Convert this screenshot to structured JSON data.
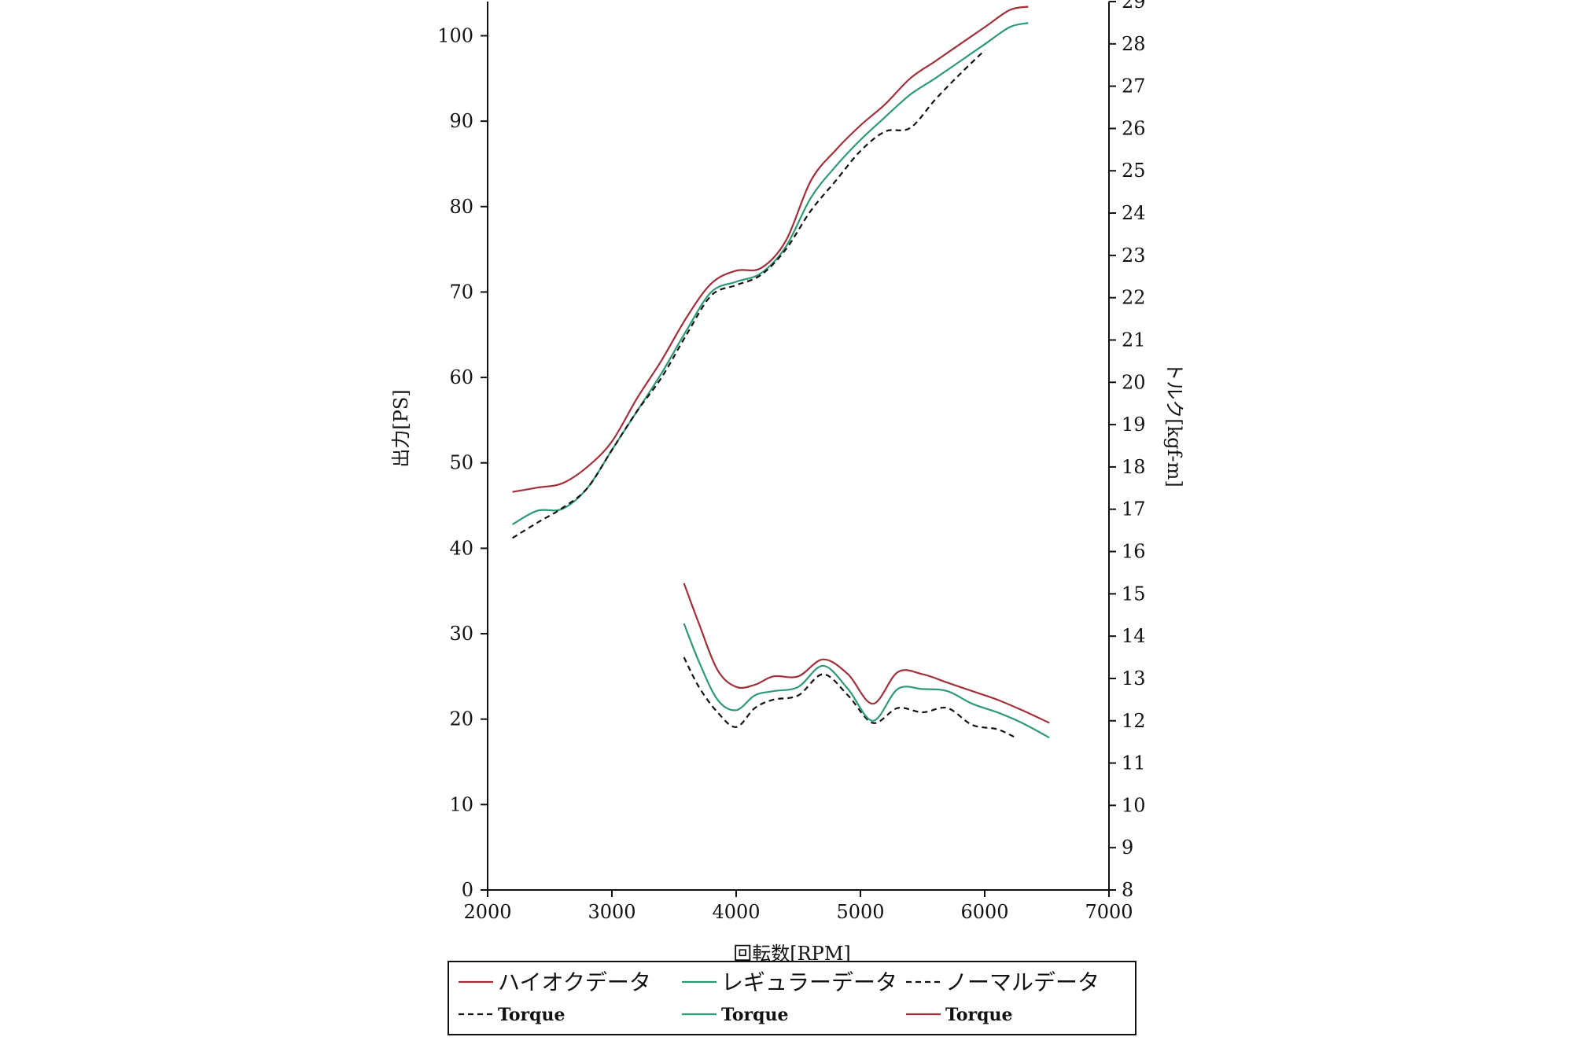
{
  "chart_data": {
    "type": "line",
    "title": "",
    "xlabel": "回転数[RPM]",
    "ylabel_left": "出力[PS]",
    "ylabel_right": "トルク[kgf-m]",
    "xlim": [
      2000,
      7000
    ],
    "ylim_left": [
      0,
      104
    ],
    "ylim_right": [
      8,
      29
    ],
    "x_ticks": [
      "2000",
      "3000",
      "4000",
      "5000",
      "6000",
      "7000"
    ],
    "y_left_ticks": [
      "0",
      "10",
      "20",
      "30",
      "40",
      "50",
      "60",
      "70",
      "80",
      "90",
      "100"
    ],
    "y_right_ticks": [
      "8",
      "9",
      "10",
      "11",
      "12",
      "13",
      "14",
      "15",
      "16",
      "17",
      "18",
      "19",
      "20",
      "21",
      "22",
      "23",
      "24",
      "25",
      "26",
      "27",
      "28",
      "29"
    ],
    "grid": false,
    "legend_position": "bottom",
    "colors": {
      "hioc": "#a0303a",
      "regular": "#2e9a72",
      "normal": "#111111"
    },
    "series": [
      {
        "name": "ハイオクデータ",
        "axis": "left",
        "style": "solid",
        "color": "#a0303a",
        "x": [
          2200,
          2400,
          2600,
          2800,
          3000,
          3200,
          3400,
          3600,
          3800,
          4000,
          4200,
          4400,
          4600,
          4800,
          5000,
          5200,
          5400,
          5600,
          5800,
          6000,
          6200,
          6350
        ],
        "y": [
          46.6,
          47.1,
          47.6,
          49.5,
          52.5,
          57.5,
          62,
          67,
          71,
          72.5,
          72.8,
          76,
          83,
          86.6,
          89.5,
          92,
          95,
          97,
          99,
          101,
          103,
          103.4
        ]
      },
      {
        "name": "レギュラーデータ",
        "axis": "left",
        "style": "solid",
        "color": "#2e9a72",
        "x": [
          2200,
          2400,
          2600,
          2800,
          3000,
          3200,
          3400,
          3600,
          3800,
          4000,
          4200,
          4400,
          4600,
          4800,
          5000,
          5200,
          5400,
          5600,
          5800,
          6000,
          6200,
          6350
        ],
        "y": [
          42.8,
          44.4,
          44.6,
          47,
          51.5,
          56,
          60.5,
          65.5,
          70,
          71.2,
          72.2,
          75.3,
          81,
          84.7,
          87.8,
          90.5,
          93.1,
          95,
          97,
          99,
          101,
          101.5
        ]
      },
      {
        "name": "ノーマルデータ",
        "axis": "left",
        "style": "dashed",
        "color": "#111111",
        "x": [
          2200,
          2400,
          2600,
          2800,
          3000,
          3200,
          3400,
          3600,
          3800,
          4000,
          4200,
          4400,
          4600,
          4800,
          5000,
          5200,
          5400,
          5600,
          5800,
          6000
        ],
        "y": [
          41.2,
          43,
          44.7,
          47,
          51.5,
          56,
          60,
          65,
          69.6,
          70.8,
          72,
          75,
          79.5,
          83,
          86.5,
          88.8,
          89.2,
          92.5,
          95.5,
          98.3
        ]
      },
      {
        "name": "Torque",
        "axis": "right",
        "style": "dashed",
        "color": "#111111",
        "x": [
          3580,
          3700,
          3850,
          4000,
          4150,
          4300,
          4500,
          4700,
          4900,
          5100,
          5300,
          5500,
          5700,
          5900,
          6100,
          6250
        ],
        "y": [
          13.5,
          12.8,
          12.2,
          11.85,
          12.3,
          12.5,
          12.6,
          13.1,
          12.6,
          11.95,
          12.3,
          12.2,
          12.3,
          11.9,
          11.8,
          11.6
        ]
      },
      {
        "name": "Torque",
        "axis": "right",
        "style": "solid",
        "color": "#2e9a72",
        "x": [
          3580,
          3700,
          3850,
          4000,
          4150,
          4300,
          4500,
          4700,
          4900,
          5100,
          5300,
          5500,
          5700,
          5900,
          6100,
          6300,
          6520
        ],
        "y": [
          14.3,
          13.4,
          12.5,
          12.25,
          12.6,
          12.7,
          12.8,
          13.3,
          12.75,
          12.0,
          12.75,
          12.75,
          12.7,
          12.4,
          12.2,
          11.95,
          11.6
        ]
      },
      {
        "name": "Torque",
        "axis": "right",
        "style": "solid",
        "color": "#a0303a",
        "x": [
          3580,
          3700,
          3850,
          4000,
          4150,
          4300,
          4500,
          4700,
          4900,
          5100,
          5300,
          5500,
          5700,
          5900,
          6100,
          6300,
          6520
        ],
        "y": [
          15.25,
          14.3,
          13.2,
          12.8,
          12.85,
          13.05,
          13.05,
          13.45,
          13.1,
          12.4,
          13.15,
          13.1,
          12.9,
          12.7,
          12.5,
          12.25,
          11.95
        ]
      }
    ]
  },
  "legend": {
    "items": [
      {
        "label": "ハイオクデータ",
        "color": "#a0303a",
        "dashed": false
      },
      {
        "label": "レギュラーデータ",
        "color": "#2e9a72",
        "dashed": false
      },
      {
        "label": "ノーマルデータ",
        "color": "#111111",
        "dashed": true
      },
      {
        "label": "Torque",
        "color": "#111111",
        "dashed": true
      },
      {
        "label": "Torque",
        "color": "#2e9a72",
        "dashed": false
      },
      {
        "label": "Torque",
        "color": "#a0303a",
        "dashed": false
      }
    ]
  }
}
